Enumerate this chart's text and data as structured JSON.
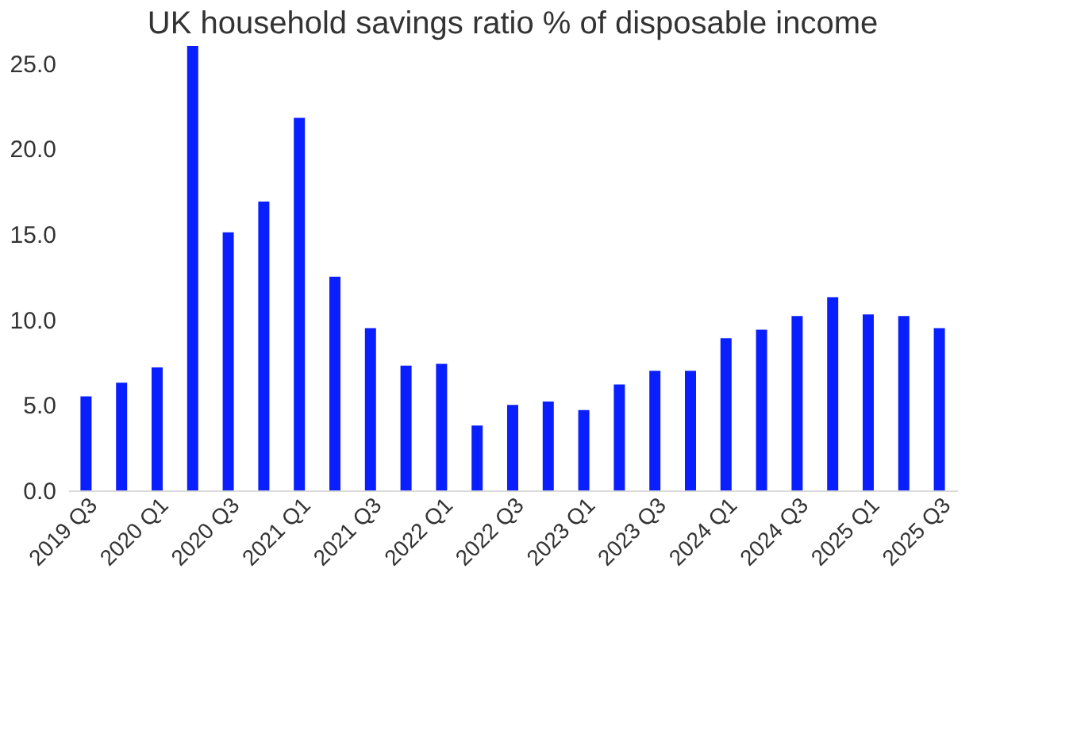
{
  "chart_data": {
    "type": "bar",
    "title": "UK household savings ratio % of disposable income",
    "categories": [
      "2019 Q3",
      null,
      "2020 Q1",
      null,
      "2020 Q3",
      null,
      "2021 Q1",
      null,
      "2021 Q3",
      null,
      "2022 Q1",
      null,
      "2022 Q3",
      null,
      "2023 Q1",
      null,
      "2023 Q3",
      null,
      "2024 Q1",
      null,
      "2024 Q3",
      null,
      "2025 Q1",
      null,
      "2025 Q3"
    ],
    "values": [
      5.5,
      6.3,
      7.2,
      26.0,
      15.1,
      16.9,
      21.8,
      12.5,
      9.5,
      7.3,
      7.4,
      3.8,
      5.0,
      5.2,
      4.7,
      6.2,
      7.0,
      7.0,
      8.9,
      9.4,
      10.2,
      11.3,
      10.3,
      10.2,
      9.5
    ],
    "color": "#0a1fff",
    "ylim": [
      0,
      26
    ],
    "yticks": [
      {
        "value": 0,
        "label": "0.0"
      },
      {
        "value": 5,
        "label": "5.0"
      },
      {
        "value": 10,
        "label": "10.0"
      },
      {
        "value": 15,
        "label": "15.0"
      },
      {
        "value": 20,
        "label": "20.0"
      },
      {
        "value": 25,
        "label": "25.0"
      }
    ],
    "grid": false
  }
}
